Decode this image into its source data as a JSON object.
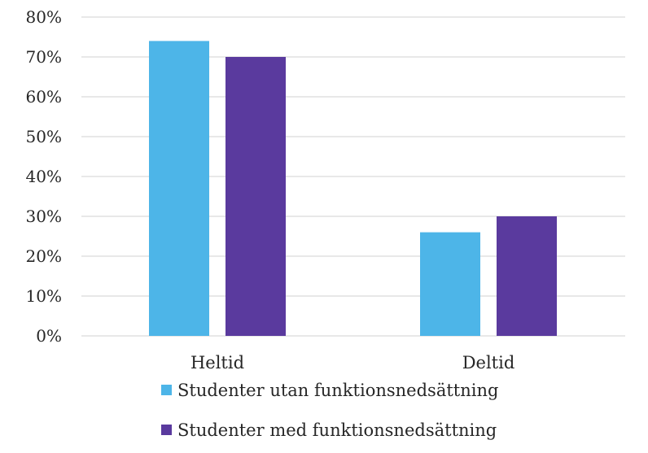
{
  "chart_data": {
    "type": "bar",
    "categories": [
      "Heltid",
      "Deltid"
    ],
    "series": [
      {
        "name": "Studenter utan funktionsnedsättning",
        "color": "#4db5e8",
        "values": [
          74,
          26
        ]
      },
      {
        "name": "Studenter med funktionsnedsättning",
        "color": "#5a3a9e",
        "values": [
          70,
          30
        ]
      }
    ],
    "ylim": [
      0,
      80
    ],
    "y_ticks": [
      "0%",
      "10%",
      "20%",
      "30%",
      "40%",
      "50%",
      "60%",
      "70%",
      "80%"
    ],
    "y_tick_values": [
      0,
      10,
      20,
      30,
      40,
      50,
      60,
      70,
      80
    ],
    "grid": true,
    "gridline_color": "#d9d9d9",
    "legend_position": "bottom",
    "title": "",
    "xlabel": "",
    "ylabel": ""
  }
}
